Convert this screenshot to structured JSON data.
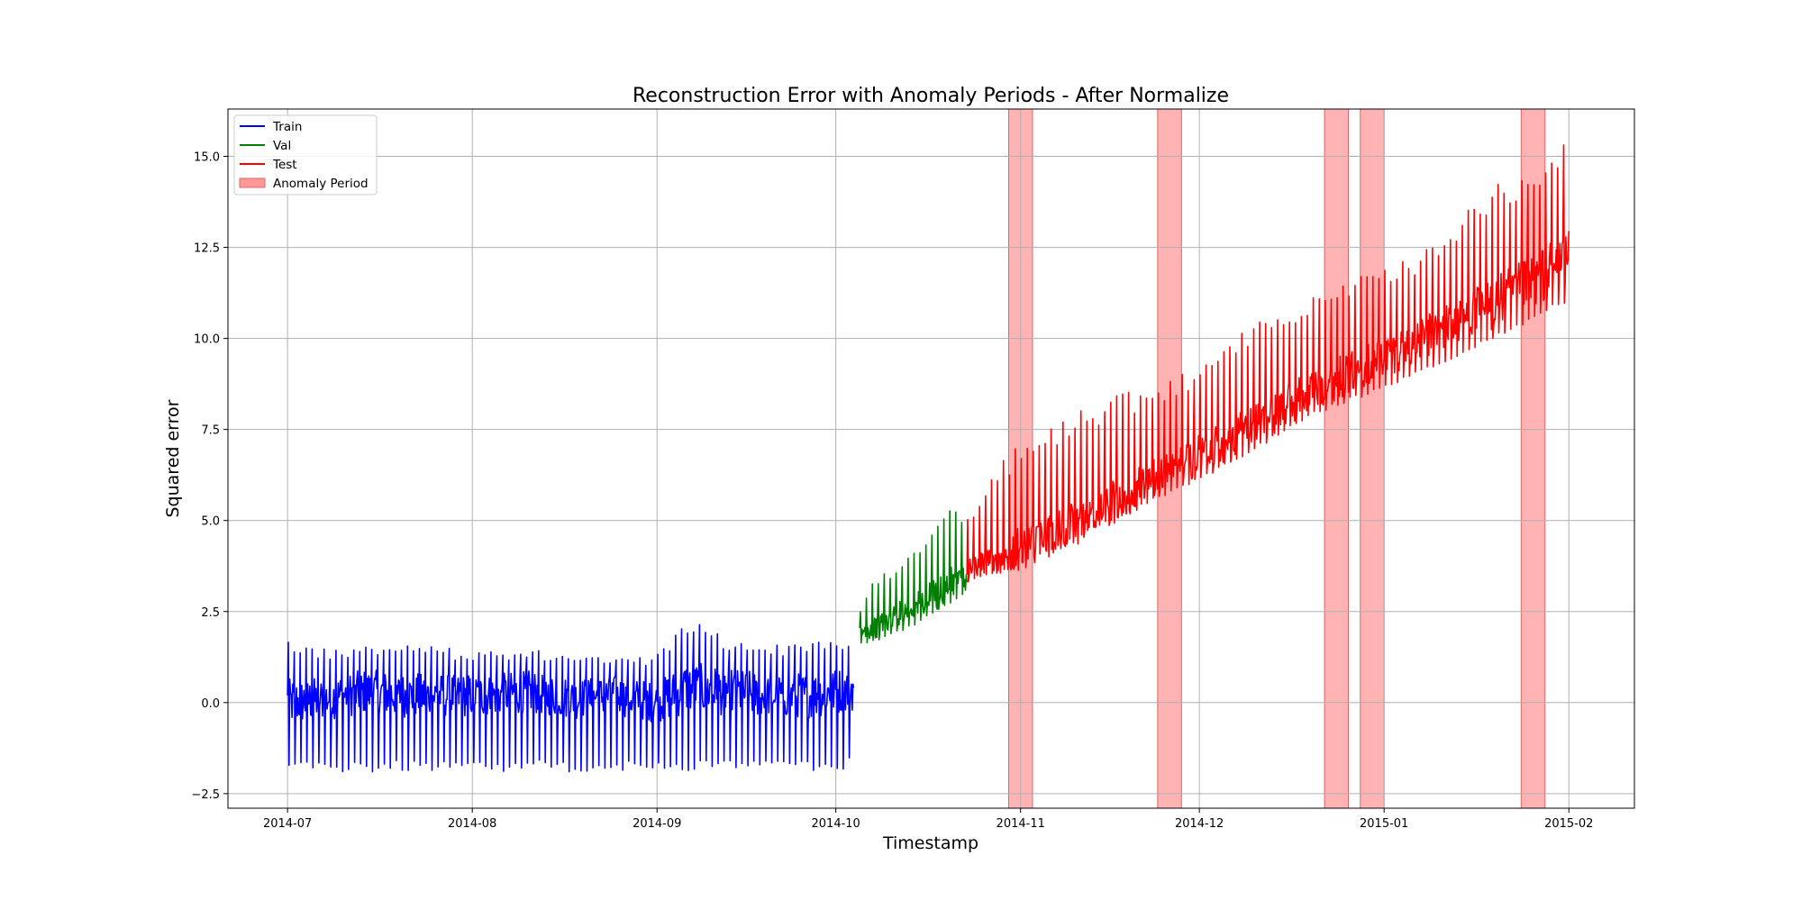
{
  "chart_data": {
    "type": "line",
    "title": "Reconstruction Error with Anomaly Periods - After Normalize",
    "xlabel": "Timestamp",
    "ylabel": "Squared error",
    "x_type": "date",
    "xlim": [
      "2014-06-21",
      "2015-02-12"
    ],
    "ylim": [
      -2.9,
      16.3
    ],
    "x_ticks": [
      "2014-07-01",
      "2014-08-01",
      "2014-09-01",
      "2014-10-01",
      "2014-11-01",
      "2014-12-01",
      "2015-01-01",
      "2015-02-01"
    ],
    "x_tick_labels": [
      "2014-07",
      "2014-08",
      "2014-09",
      "2014-10",
      "2014-11",
      "2014-12",
      "2015-01",
      "2015-02"
    ],
    "y_ticks": [
      -2.5,
      0.0,
      2.5,
      5.0,
      7.5,
      10.0,
      12.5,
      15.0
    ],
    "y_tick_labels": [
      "−2.5",
      "0.0",
      "2.5",
      "5.0",
      "7.5",
      "10.0",
      "12.5",
      "15.0"
    ],
    "grid": true,
    "legend_position": "top-left",
    "series": [
      {
        "name": "Train",
        "color": "#0000ff",
        "x": [
          "2014-07-01",
          "2014-07-07",
          "2014-07-14",
          "2014-07-21",
          "2014-07-28",
          "2014-08-04",
          "2014-08-11",
          "2014-08-18",
          "2014-08-25",
          "2014-09-01",
          "2014-09-06",
          "2014-09-13",
          "2014-09-20",
          "2014-09-27",
          "2014-10-04"
        ],
        "y": [
          0.0,
          0.1,
          0.3,
          0.2,
          0.2,
          0.2,
          0.3,
          0.1,
          0.2,
          0.0,
          0.4,
          0.3,
          0.2,
          0.2,
          0.4
        ],
        "band_high": [
          1.8,
          1.5,
          1.6,
          1.6,
          1.5,
          1.4,
          1.5,
          1.3,
          1.2,
          1.3,
          2.3,
          1.8,
          1.6,
          1.7,
          1.8
        ],
        "band_low": [
          -1.9,
          -1.9,
          -1.9,
          -1.9,
          -1.9,
          -1.9,
          -1.9,
          -1.9,
          -1.9,
          -1.9,
          -1.9,
          -1.9,
          -1.9,
          -1.9,
          -1.8
        ]
      },
      {
        "name": "Val",
        "color": "#008000",
        "x": [
          "2014-10-05",
          "2014-10-08",
          "2014-10-11",
          "2014-10-14",
          "2014-10-17",
          "2014-10-20",
          "2014-10-23"
        ],
        "y": [
          1.9,
          2.1,
          2.4,
          2.6,
          2.9,
          3.2,
          3.4
        ],
        "band_high": [
          2.6,
          3.6,
          3.8,
          4.2,
          4.8,
          5.7,
          4.7
        ],
        "band_low": [
          1.6,
          1.7,
          1.9,
          2.1,
          2.4,
          2.7,
          3.0
        ]
      },
      {
        "name": "Test",
        "color": "#ff0000",
        "x": [
          "2014-10-23",
          "2014-11-01",
          "2014-11-10",
          "2014-11-20",
          "2014-12-01",
          "2014-12-10",
          "2014-12-20",
          "2015-01-01",
          "2015-01-10",
          "2015-01-20",
          "2015-02-01"
        ],
        "y": [
          3.7,
          4.2,
          4.9,
          5.8,
          6.8,
          7.6,
          8.6,
          9.5,
          10.2,
          11.0,
          12.2
        ],
        "band_high": [
          5.1,
          7.4,
          8.1,
          8.6,
          9.2,
          10.4,
          11.3,
          11.9,
          12.7,
          14.3,
          15.4
        ],
        "band_low": [
          3.3,
          3.8,
          4.5,
          5.3,
          6.1,
          6.9,
          7.9,
          8.6,
          9.2,
          10.0,
          11.0
        ]
      }
    ],
    "anomaly_legend_label": "Anomaly Period",
    "anomaly_color": "#ff9999",
    "anomaly_periods": [
      [
        "2014-10-30",
        "2014-11-03"
      ],
      [
        "2014-11-24",
        "2014-11-28"
      ],
      [
        "2014-12-22",
        "2014-12-26"
      ],
      [
        "2014-12-28",
        "2015-01-01"
      ],
      [
        "2015-01-24",
        "2015-01-28"
      ]
    ]
  }
}
